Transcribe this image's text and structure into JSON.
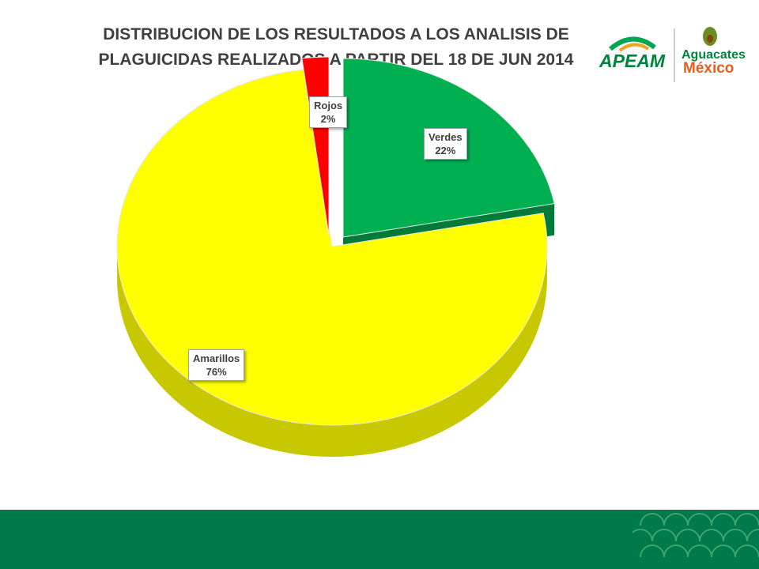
{
  "title_lines": [
    "DISTRIBUCION DE LOS RESULTADOS A LOS ANALISIS DE",
    "PLAGUICIDAS REALIZADOS A PARTIR DEL 18 DE JUN 2014"
  ],
  "logos": {
    "apeam": "APEAM",
    "aguacates": "Aguacates",
    "mexico": "México"
  },
  "colors": {
    "verdes": "#00b050",
    "amarillos": "#ffff00",
    "rojos": "#ff0000",
    "footer": "#00794b"
  },
  "chart_data": {
    "type": "pie",
    "title": "DISTRIBUCION DE LOS RESULTADOS A LOS ANALISIS DE PLAGUICIDAS REALIZADOS A PARTIR DEL 18 DE JUN 2014",
    "slices": [
      {
        "name": "Verdes",
        "value": 22,
        "label": "22%"
      },
      {
        "name": "Amarillos",
        "value": 76,
        "label": "76%"
      },
      {
        "name": "Rojos",
        "value": 2,
        "label": "2%"
      }
    ],
    "legend": "none",
    "style": "3d-exploded"
  }
}
